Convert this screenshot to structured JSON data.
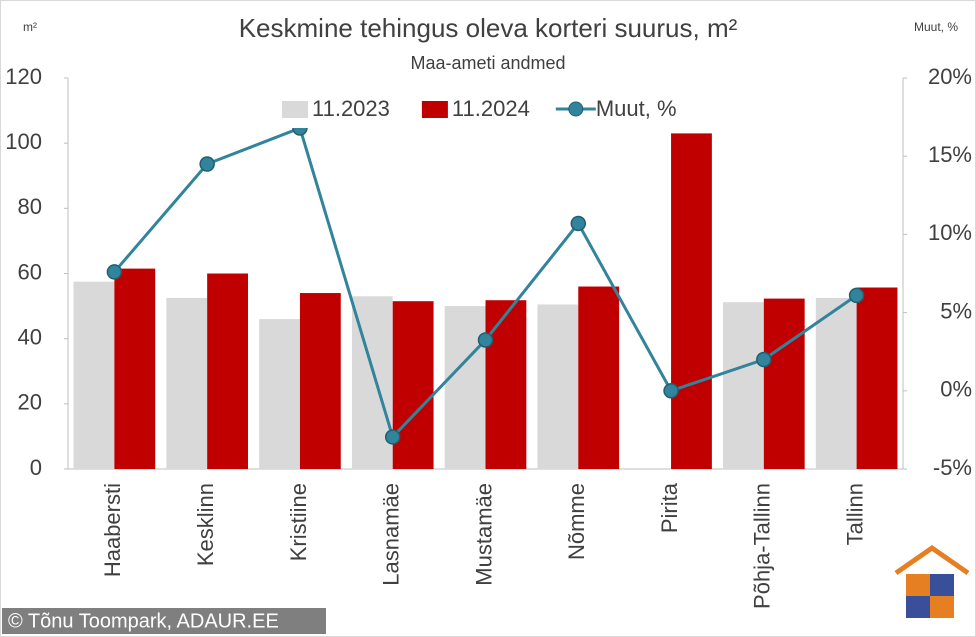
{
  "chart_data": {
    "type": "bar_line",
    "title": "Keskmine tehingus oleva korteri suurus, m²",
    "subtitle": "Maa-ameti andmed",
    "y_label": "m²",
    "y2_label": "Muut, %",
    "categories": [
      "Haabersti",
      "Kesklinn",
      "Kristiine",
      "Lasnamäe",
      "Mustamäe",
      "Nõmme",
      "Pirita",
      "Põhja-Tallinn",
      "Tallinn"
    ],
    "series": [
      {
        "name": "11.2023",
        "type": "bar",
        "color": "#d9d9d9",
        "values": [
          57.5,
          52.5,
          46,
          53,
          50,
          50.5,
          null,
          51.2,
          52.5
        ]
      },
      {
        "name": "11.2024",
        "type": "bar",
        "color": "#c00000",
        "values": [
          61.5,
          60,
          54,
          51.5,
          51.8,
          56,
          103,
          52.3,
          55.7
        ]
      },
      {
        "name": "Muut, %",
        "type": "line",
        "axis": "y2",
        "color": "#31849b",
        "values": [
          7.6,
          14.5,
          16.8,
          -2.95,
          3.25,
          10.7,
          0,
          2.0,
          6.1
        ]
      }
    ],
    "ylim": [
      0,
      120
    ],
    "yticks": [
      0,
      20,
      40,
      60,
      80,
      100,
      120
    ],
    "y2lim": [
      -5,
      20
    ],
    "y2ticks": [
      {
        "value": -5,
        "label": "-5%"
      },
      {
        "value": 0,
        "label": "0%"
      },
      {
        "value": 5,
        "label": "5%"
      },
      {
        "value": 10,
        "label": "10%"
      },
      {
        "value": 15,
        "label": "15%"
      },
      {
        "value": 20,
        "label": "20%"
      }
    ],
    "grid": false,
    "legend": "top",
    "credit": "© Tõnu Toompark, ADAUR.EE"
  }
}
